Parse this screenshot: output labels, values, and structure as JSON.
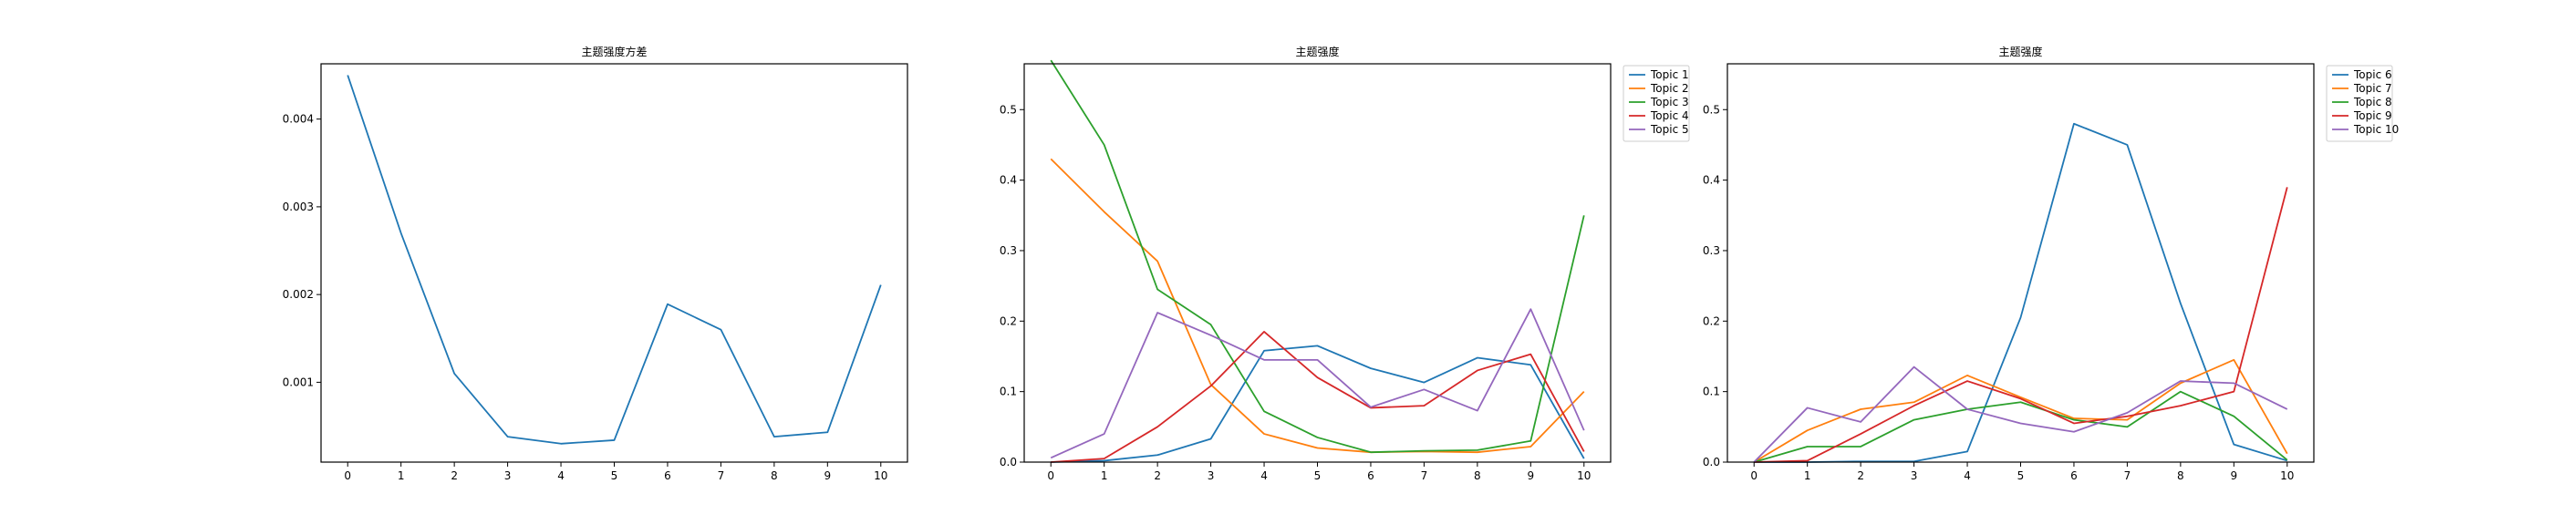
{
  "chart_data": [
    {
      "type": "line",
      "title": "主题强度方差",
      "xlabel": "",
      "ylabel": "",
      "x": [
        0,
        1,
        2,
        3,
        4,
        5,
        6,
        7,
        8,
        9,
        10
      ],
      "xticks": [
        0,
        1,
        2,
        3,
        4,
        5,
        6,
        7,
        8,
        9,
        10
      ],
      "yticks": [
        0.001,
        0.002,
        0.003,
        0.004
      ],
      "ytick_labels": [
        "0.001",
        "0.002",
        "0.003",
        "0.004"
      ],
      "xlim": [
        -0.5,
        10.5
      ],
      "ylim": [
        9e-05,
        0.00463
      ],
      "grid": false,
      "legend": null,
      "series": [
        {
          "color": "#1f77b4",
          "values": [
            0.0045,
            0.0027,
            0.0011,
            0.00038,
            0.0003,
            0.00034,
            0.00189,
            0.0016,
            0.00038,
            0.00043,
            0.00211
          ]
        }
      ]
    },
    {
      "type": "line",
      "title": "主题强度",
      "xlabel": "",
      "ylabel": "",
      "x": [
        0,
        1,
        2,
        3,
        4,
        5,
        6,
        7,
        8,
        9,
        10
      ],
      "xticks": [
        0,
        1,
        2,
        3,
        4,
        5,
        6,
        7,
        8,
        9,
        10
      ],
      "yticks": [
        0.0,
        0.1,
        0.2,
        0.3,
        0.4,
        0.5
      ],
      "ytick_labels": [
        "0.0",
        "0.1",
        "0.2",
        "0.3",
        "0.4",
        "0.5"
      ],
      "xlim": [
        -0.5,
        10.5
      ],
      "ylim": [
        0.0,
        0.565
      ],
      "grid": false,
      "legend": "outside-top-right",
      "series": [
        {
          "name": "Topic 1",
          "color": "#1f77b4",
          "values": [
            0.0,
            0.002,
            0.01,
            0.033,
            0.158,
            0.165,
            0.133,
            0.113,
            0.148,
            0.138,
            0.005
          ]
        },
        {
          "name": "Topic 2",
          "color": "#ff7f0e",
          "values": [
            0.43,
            0.355,
            0.285,
            0.11,
            0.04,
            0.02,
            0.014,
            0.015,
            0.014,
            0.022,
            0.1
          ]
        },
        {
          "name": "Topic 3",
          "color": "#2ca02c",
          "values": [
            0.57,
            0.45,
            0.245,
            0.195,
            0.072,
            0.035,
            0.014,
            0.016,
            0.017,
            0.03,
            0.35
          ]
        },
        {
          "name": "Topic 4",
          "color": "#d62728",
          "values": [
            0.0,
            0.005,
            0.05,
            0.108,
            0.185,
            0.12,
            0.077,
            0.08,
            0.13,
            0.153,
            0.015
          ]
        },
        {
          "name": "Topic 5",
          "color": "#9467bd",
          "values": [
            0.006,
            0.04,
            0.212,
            0.18,
            0.145,
            0.145,
            0.078,
            0.103,
            0.073,
            0.217,
            0.045
          ]
        }
      ]
    },
    {
      "type": "line",
      "title": "主题强度",
      "xlabel": "",
      "ylabel": "",
      "x": [
        0,
        1,
        2,
        3,
        4,
        5,
        6,
        7,
        8,
        9,
        10
      ],
      "xticks": [
        0,
        1,
        2,
        3,
        4,
        5,
        6,
        7,
        8,
        9,
        10
      ],
      "yticks": [
        0.0,
        0.1,
        0.2,
        0.3,
        0.4,
        0.5
      ],
      "ytick_labels": [
        "0.0",
        "0.1",
        "0.2",
        "0.3",
        "0.4",
        "0.5"
      ],
      "xlim": [
        -0.5,
        10.5
      ],
      "ylim": [
        0.0,
        0.565
      ],
      "grid": false,
      "legend": "outside-top-right",
      "series": [
        {
          "name": "Topic 6",
          "color": "#1f77b4",
          "values": [
            0.0,
            0.0,
            0.001,
            0.001,
            0.015,
            0.205,
            0.48,
            0.45,
            0.225,
            0.025,
            0.002
          ]
        },
        {
          "name": "Topic 7",
          "color": "#ff7f0e",
          "values": [
            0.0,
            0.045,
            0.075,
            0.085,
            0.123,
            0.092,
            0.062,
            0.06,
            0.112,
            0.145,
            0.012
          ]
        },
        {
          "name": "Topic 8",
          "color": "#2ca02c",
          "values": [
            0.0,
            0.022,
            0.022,
            0.06,
            0.075,
            0.085,
            0.06,
            0.05,
            0.1,
            0.065,
            0.003
          ]
        },
        {
          "name": "Topic 9",
          "color": "#d62728",
          "values": [
            0.0,
            0.002,
            0.04,
            0.08,
            0.115,
            0.09,
            0.055,
            0.065,
            0.08,
            0.1,
            0.39
          ]
        },
        {
          "name": "Topic 10",
          "color": "#9467bd",
          "values": [
            0.0,
            0.077,
            0.057,
            0.135,
            0.075,
            0.055,
            0.043,
            0.07,
            0.115,
            0.112,
            0.075
          ]
        }
      ]
    }
  ]
}
